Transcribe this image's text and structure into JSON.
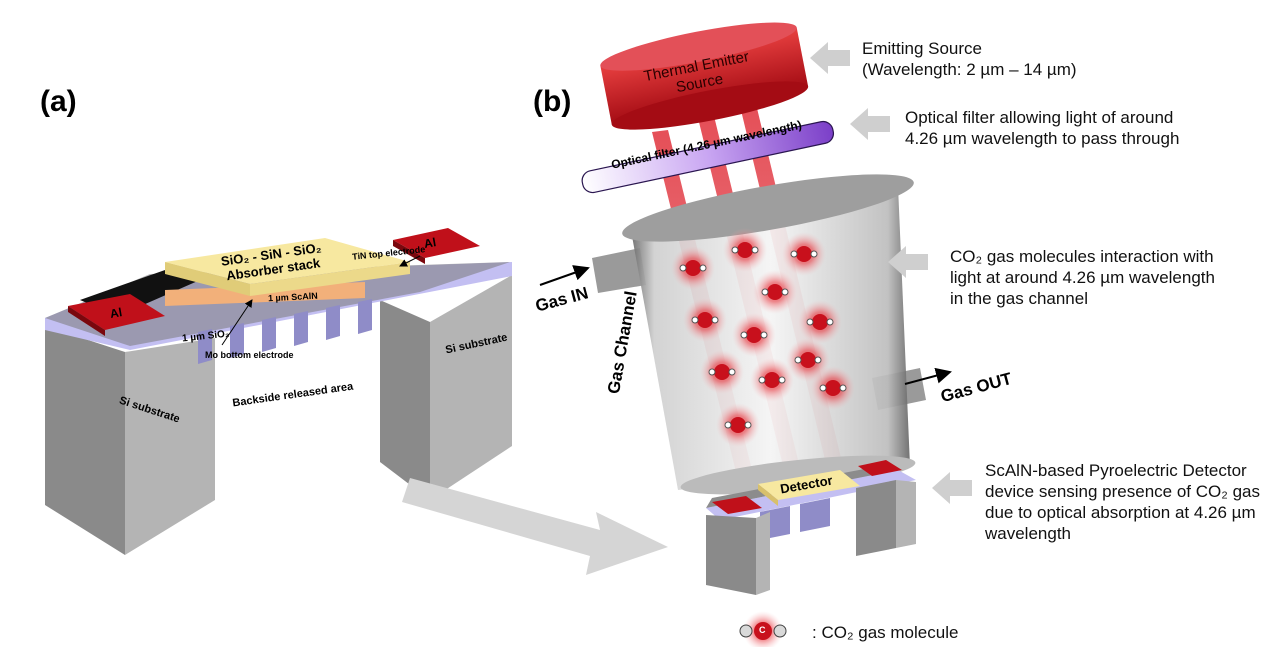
{
  "panels": {
    "a": "(a)",
    "b": "(b)"
  },
  "device_a": {
    "absorber_line1": "SiO₂ - SiN - SiO₂",
    "absorber_line2": "Absorber stack",
    "tin": "TiN top electrode",
    "scaln": "1 µm ScAlN",
    "sio2": "1 µm SiO₂",
    "mo": "Mo bottom electrode",
    "al_left": "Al",
    "al_right": "Al",
    "si_left": "Si substrate",
    "si_right": "Si substrate",
    "backside": "Backside released area"
  },
  "setup_b": {
    "emitter_line1": "Thermal Emitter",
    "emitter_line2": "Source",
    "filter": "Optical filter (4.26 µm wavelength)",
    "gas_channel": "Gas Channel",
    "gas_in": "Gas IN",
    "gas_out": "Gas OUT",
    "detector": "Detector"
  },
  "descriptions": {
    "emitting_line1": "Emitting Source",
    "emitting_line2": "(Wavelength: 2 µm – 14 µm)",
    "filter_line1": "Optical filter allowing light of around",
    "filter_line2": "4.26 µm wavelength to pass through",
    "co2_line1": "CO₂ gas molecules interaction with",
    "co2_line2": "light at around 4.26 µm wavelength",
    "co2_line3": "in the gas channel",
    "det_line1": "ScAlN-based Pyroelectric Detector",
    "det_line2": "device sensing presence of CO₂ gas",
    "det_line3": "due to optical absorption at 4.26 µm",
    "det_line4": "wavelength"
  },
  "legend": {
    "molecule_letter": "C",
    "text": ": CO₂ gas molecule"
  },
  "colors": {
    "electrode": "#c0101a",
    "absorber": "#f7e8a0",
    "sio2": "#b9b4ee",
    "substrate": "#8c8c8c",
    "beam": "#e0303a"
  }
}
